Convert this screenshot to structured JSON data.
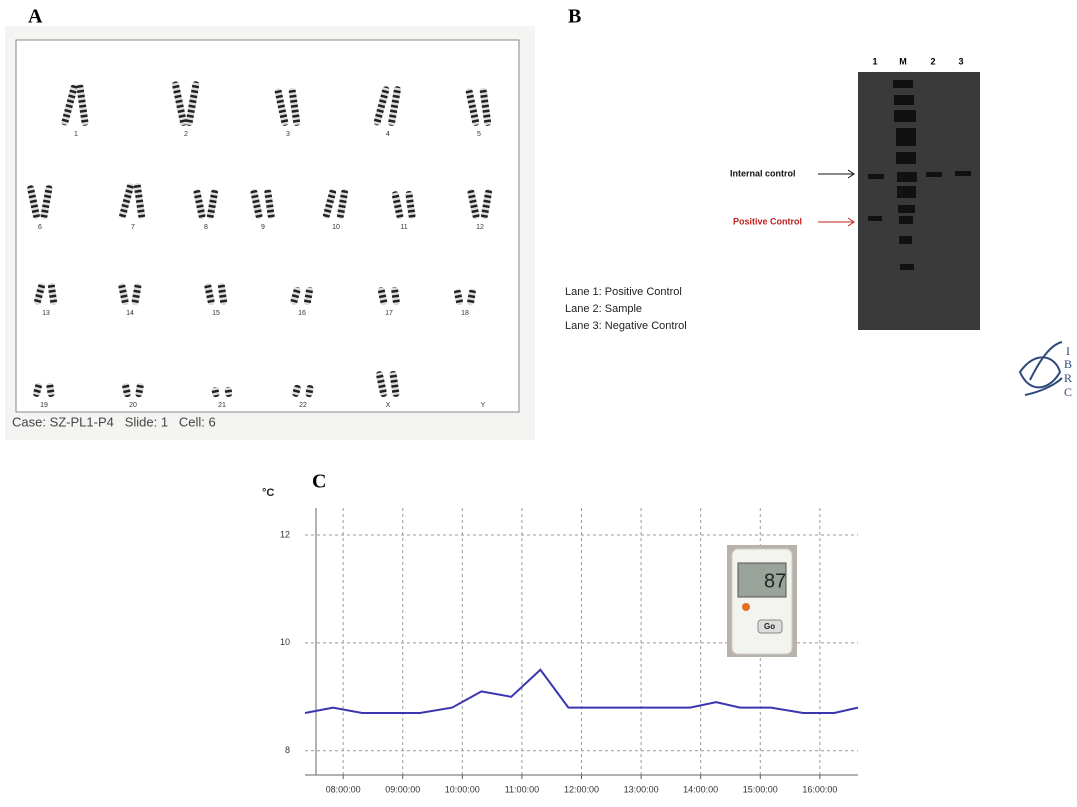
{
  "panel_a": {
    "label": "A",
    "chromosome_labels": [
      "1",
      "2",
      "3",
      "4",
      "5",
      "6",
      "7",
      "8",
      "9",
      "10",
      "11",
      "12",
      "13",
      "14",
      "15",
      "16",
      "17",
      "18",
      "19",
      "20",
      "21",
      "22",
      "X",
      "Y"
    ],
    "caption": "Case: SZ-PL1-P4   Slide: 1   Cell: 6"
  },
  "panel_b": {
    "label": "B",
    "lanes": [
      "1",
      "M",
      "2",
      "3"
    ],
    "band_labels": [
      "Internal control",
      "Positive Control"
    ],
    "legend": [
      "Lane 1: Positive Control",
      "Lane 2: Sample",
      "Lane 3: Negative Control"
    ],
    "logo": [
      "I",
      "B",
      "R",
      "C"
    ]
  },
  "logger": {
    "display": "87",
    "button": "Go"
  },
  "chart_data": {
    "type": "line",
    "panel_label": "C",
    "y_unit": "°C",
    "x": [
      7.36,
      7.83,
      8.32,
      9.29,
      9.83,
      10.32,
      10.82,
      11.31,
      11.78,
      13.82,
      14.26,
      14.66,
      15.18,
      15.72,
      16.24,
      16.64
    ],
    "values": [
      8.7,
      8.8,
      8.7,
      8.7,
      8.8,
      9.1,
      9.0,
      9.5,
      8.8,
      8.8,
      8.9,
      8.8,
      8.8,
      8.7,
      8.7,
      8.8
    ],
    "color": "#3b35b0",
    "xlim": [
      7.36,
      16.64
    ],
    "ylim": [
      7.55,
      12.5
    ],
    "xticks": [
      {
        "value": 8,
        "label": "08:00:00"
      },
      {
        "value": 9,
        "label": "09:00:00"
      },
      {
        "value": 10,
        "label": "10:00:00"
      },
      {
        "value": 11,
        "label": "11:00:00"
      },
      {
        "value": 12,
        "label": "12:00:00"
      },
      {
        "value": 13,
        "label": "13:00:00"
      },
      {
        "value": 14,
        "label": "14:00:00"
      },
      {
        "value": 15,
        "label": "15:00:00"
      },
      {
        "value": 16,
        "label": "16:00:00"
      }
    ],
    "yticks": [
      8,
      10,
      12
    ],
    "grid": true
  }
}
